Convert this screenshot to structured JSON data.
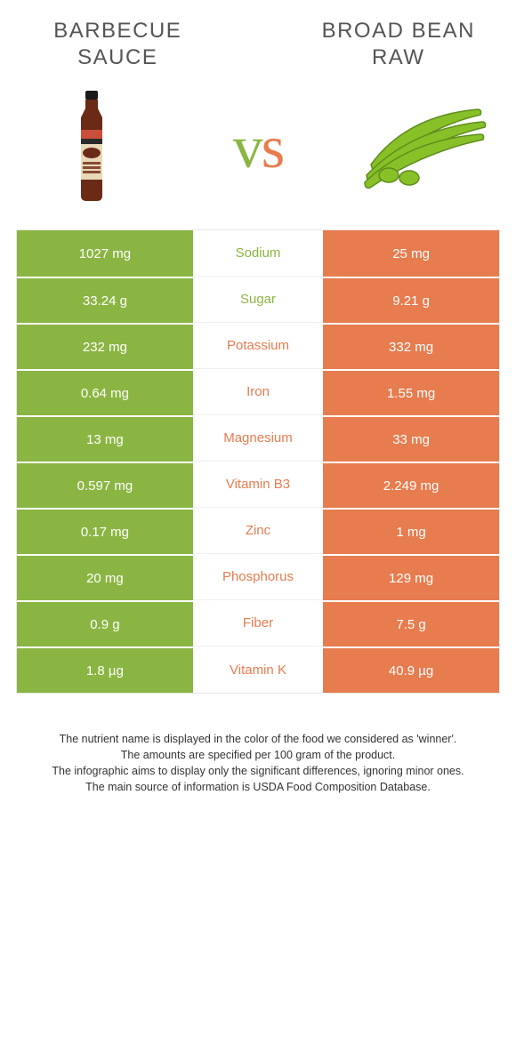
{
  "colors": {
    "left": "#8bb542",
    "right": "#e77c4f",
    "title_text": "#555555",
    "footnote_text": "#333333",
    "background": "#ffffff",
    "bottle_body": "#6b2a16",
    "bottle_label_top": "#c94f3a",
    "bottle_label_mid": "#e8d9b8",
    "bottle_label_band": "#2a2a2a",
    "bottle_cap": "#1a1a1a",
    "bean_fill": "#88c028",
    "bean_stroke": "#5e8e1d"
  },
  "header": {
    "left_title": "Barbecue sauce",
    "right_title": "Broad bean raw",
    "vs": "vs"
  },
  "table": {
    "rows": [
      {
        "left": "1027 mg",
        "label": "Sodium",
        "right": "25 mg",
        "winner": "left"
      },
      {
        "left": "33.24 g",
        "label": "Sugar",
        "right": "9.21 g",
        "winner": "left"
      },
      {
        "left": "232 mg",
        "label": "Potassium",
        "right": "332 mg",
        "winner": "right"
      },
      {
        "left": "0.64 mg",
        "label": "Iron",
        "right": "1.55 mg",
        "winner": "right"
      },
      {
        "left": "13 mg",
        "label": "Magnesium",
        "right": "33 mg",
        "winner": "right"
      },
      {
        "left": "0.597 mg",
        "label": "Vitamin B3",
        "right": "2.249 mg",
        "winner": "right"
      },
      {
        "left": "0.17 mg",
        "label": "Zinc",
        "right": "1 mg",
        "winner": "right"
      },
      {
        "left": "20 mg",
        "label": "Phosphorus",
        "right": "129 mg",
        "winner": "right"
      },
      {
        "left": "0.9 g",
        "label": "Fiber",
        "right": "7.5 g",
        "winner": "right"
      },
      {
        "left": "1.8 µg",
        "label": "Vitamin K",
        "right": "40.9 µg",
        "winner": "right"
      }
    ]
  },
  "footnotes": [
    "The nutrient name is displayed in the color of the food we considered as 'winner'.",
    "The amounts are specified per 100 gram of the product.",
    "The infographic aims to display only the significant differences, ignoring minor ones.",
    "The main source of information is USDA Food Composition Database."
  ]
}
